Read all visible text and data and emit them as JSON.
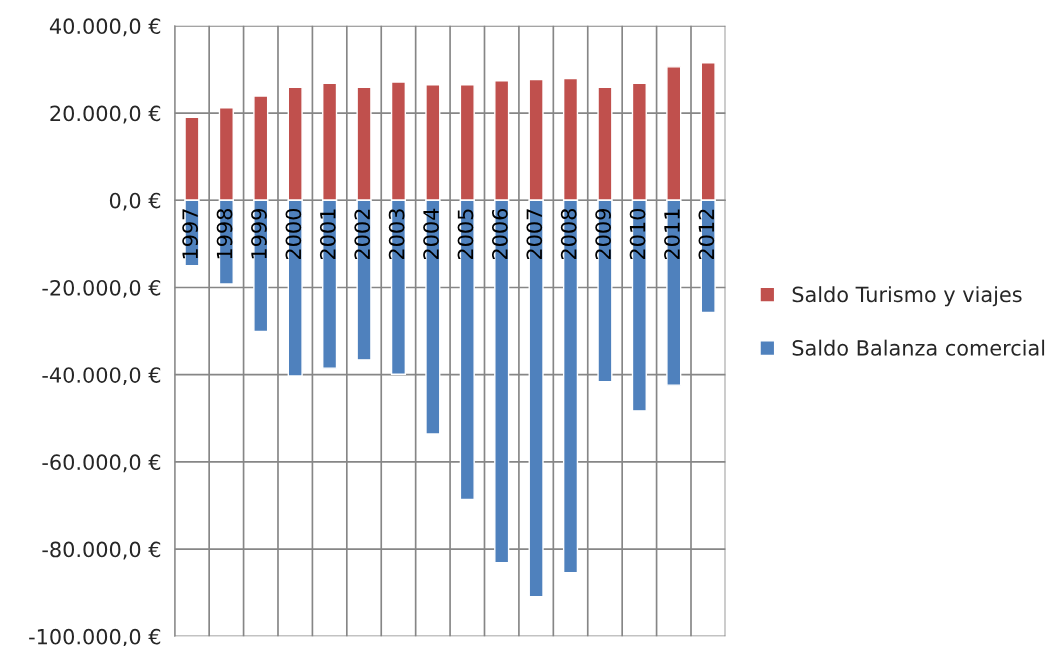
{
  "chart_data": {
    "type": "bar",
    "stacked": true,
    "categories": [
      "1997",
      "1998",
      "1999",
      "2000",
      "2001",
      "2002",
      "2003",
      "2004",
      "2005",
      "2006",
      "2007",
      "2008",
      "2009",
      "2010",
      "2011",
      "2012"
    ],
    "series": [
      {
        "name": "Saldo Turismo y viajes",
        "color": "#c0504d",
        "values": [
          19000,
          21200,
          23900,
          25900,
          26800,
          25900,
          27100,
          26500,
          26500,
          27400,
          27700,
          27900,
          25900,
          26800,
          30600,
          31500
        ]
      },
      {
        "name": "Saldo Balanza comercial",
        "color": "#4f81bd",
        "values": [
          -15000,
          -19200,
          -30100,
          -40300,
          -38500,
          -36600,
          -39900,
          -53600,
          -68600,
          -83100,
          -90900,
          -85400,
          -41600,
          -48300,
          -42400,
          -25700
        ]
      }
    ],
    "ylim": [
      -100000,
      40000
    ],
    "yticks": [
      {
        "value": -100000,
        "label": "-100.000,0 €"
      },
      {
        "value": -80000,
        "label": "-80.000,0 €"
      },
      {
        "value": -60000,
        "label": "-60.000,0 €"
      },
      {
        "value": -40000,
        "label": "-40.000,0 €"
      },
      {
        "value": -20000,
        "label": "-20.000,0 €"
      },
      {
        "value": 0,
        "label": "0,0 €"
      },
      {
        "value": 20000,
        "label": "20.000,0 €"
      },
      {
        "value": 40000,
        "label": "40.000,0 €"
      }
    ],
    "grid": true,
    "legend": "right"
  }
}
